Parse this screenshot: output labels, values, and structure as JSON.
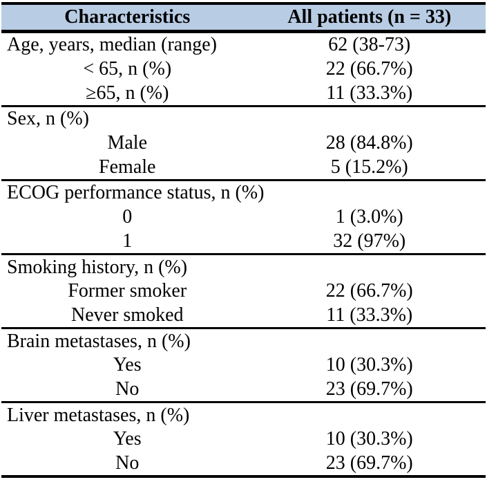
{
  "colors": {
    "header_bg": "#b8cce4",
    "border": "#000000"
  },
  "header": {
    "characteristics": "Characteristics",
    "all_patients": "All patients (n = 33)"
  },
  "rows": [
    {
      "label": "Age, years, median (range)",
      "value": "62 (38-73)"
    },
    {
      "label": "< 65, n (%)",
      "value": "22 (66.7%)"
    },
    {
      "label": "≥65, n (%)",
      "value": "11 (33.3%)"
    },
    {
      "label": "Sex, n (%)",
      "value": ""
    },
    {
      "label": "Male",
      "value": "28 (84.8%)"
    },
    {
      "label": "Female",
      "value": "5 (15.2%)"
    },
    {
      "label": "ECOG performance status, n (%)",
      "value": ""
    },
    {
      "label": "0",
      "value": "1 (3.0%)"
    },
    {
      "label": "1",
      "value": "32 (97%)"
    },
    {
      "label": "Smoking history, n (%)",
      "value": ""
    },
    {
      "label": "Former smoker",
      "value": "22 (66.7%)"
    },
    {
      "label": "Never smoked",
      "value": "11 (33.3%)"
    },
    {
      "label": "Brain metastases, n (%)",
      "value": ""
    },
    {
      "label": "Yes",
      "value": "10 (30.3%)"
    },
    {
      "label": "No",
      "value": "23 (69.7%)"
    },
    {
      "label": "Liver metastases, n (%)",
      "value": ""
    },
    {
      "label": "Yes",
      "value": "10 (30.3%)"
    },
    {
      "label": "No",
      "value": "23 (69.7%)"
    }
  ]
}
